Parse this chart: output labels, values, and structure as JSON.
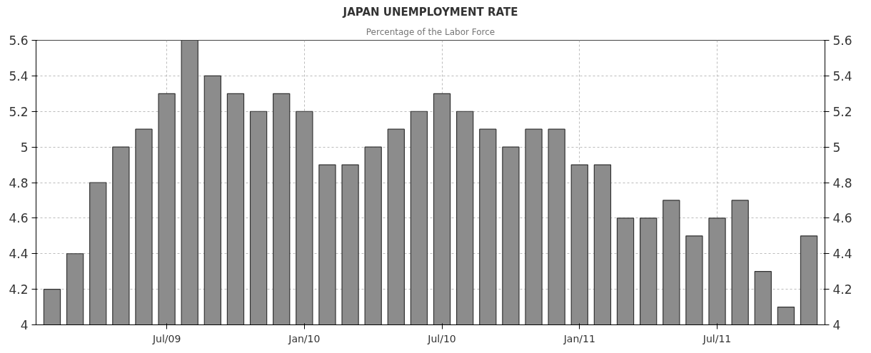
{
  "chart_data": {
    "type": "bar",
    "title": "JAPAN UNEMPLOYMENT RATE",
    "subtitle": "Percentage of the Labor Force",
    "categories": [
      null,
      null,
      null,
      null,
      null,
      "Jul/09",
      null,
      null,
      null,
      null,
      null,
      "Jan/10",
      null,
      null,
      null,
      null,
      null,
      "Jul/10",
      null,
      null,
      null,
      null,
      null,
      "Jan/11",
      null,
      null,
      null,
      null,
      null,
      "Jul/11",
      null,
      null,
      null,
      null
    ],
    "values": [
      4.2,
      4.4,
      4.8,
      5.0,
      5.1,
      5.3,
      5.6,
      5.4,
      5.3,
      5.2,
      5.3,
      5.2,
      4.9,
      4.9,
      5.0,
      5.1,
      5.2,
      5.3,
      5.2,
      5.1,
      5.0,
      5.1,
      5.1,
      4.9,
      4.9,
      4.6,
      4.6,
      4.7,
      4.5,
      4.6,
      4.7,
      4.3,
      4.1,
      4.5
    ],
    "color": "#8c8c8c",
    "ylim": [
      4,
      5.6
    ],
    "yticks": [
      4,
      4.2,
      4.4,
      4.6,
      4.8,
      5,
      5.2,
      5.4,
      5.6
    ],
    "y2lim": [
      4,
      5.6
    ],
    "y2ticks": [
      4,
      4.2,
      4.4,
      4.6,
      4.8,
      5,
      5.2,
      5.4,
      5.6
    ],
    "grid": true
  }
}
